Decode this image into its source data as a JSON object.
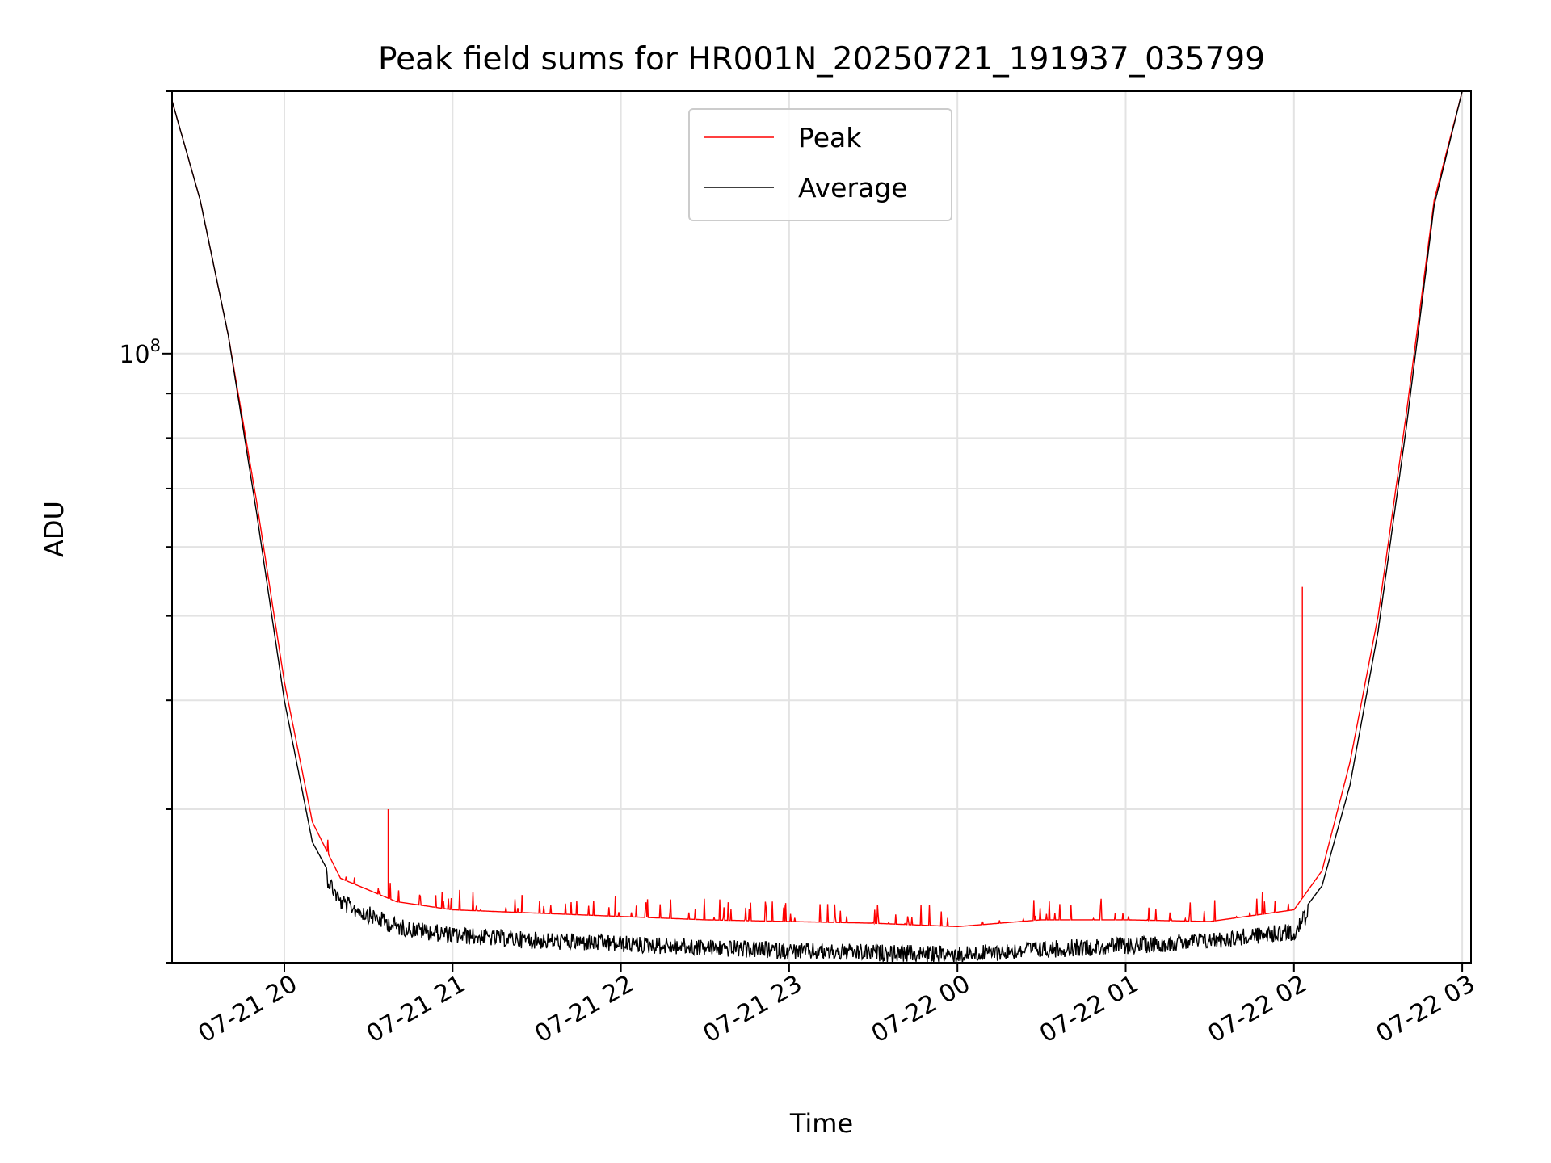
{
  "chart_data": {
    "type": "line",
    "title": "Peak field sums for HR001N_20250721_191937_035799",
    "xlabel": "Time",
    "ylabel": "ADU",
    "yscale": "log",
    "ylim": [
      20000000,
      200000000
    ],
    "xlim": [
      "2025-07-21 19:19:37",
      "2025-07-22 03:00:00"
    ],
    "x_ticks": [
      "07-21 20",
      "07-21 21",
      "07-21 22",
      "07-21 23",
      "07-22 00",
      "07-22 01",
      "07-22 02",
      "07-22 03"
    ],
    "y_tick_major": [
      {
        "value": 100000000,
        "base": "10",
        "exp": "8"
      }
    ],
    "grid": true,
    "legend_position": "upper center",
    "x": [
      "2025-07-21 19:19",
      "2025-07-21 19:30",
      "2025-07-21 19:40",
      "2025-07-21 19:50",
      "2025-07-21 20:00",
      "2025-07-21 20:10",
      "2025-07-21 20:20",
      "2025-07-21 20:40",
      "2025-07-21 21:00",
      "2025-07-21 21:30",
      "2025-07-21 22:00",
      "2025-07-21 22:30",
      "2025-07-21 23:00",
      "2025-07-21 23:30",
      "2025-07-22 00:00",
      "2025-07-22 00:30",
      "2025-07-22 01:00",
      "2025-07-22 01:30",
      "2025-07-22 02:00",
      "2025-07-22 02:10",
      "2025-07-22 02:20",
      "2025-07-22 02:30",
      "2025-07-22 02:40",
      "2025-07-22 02:50",
      "2025-07-22 03:00"
    ],
    "series": [
      {
        "name": "Peak",
        "color": "#ff0000",
        "values": [
          200000000,
          150000000,
          105000000,
          68000000,
          42000000,
          29000000,
          25000000,
          23500000,
          23000000,
          22800000,
          22600000,
          22400000,
          22300000,
          22200000,
          22000000,
          22400000,
          22400000,
          22300000,
          23000000,
          25500000,
          34000000,
          50000000,
          85000000,
          150000000,
          200000000
        ],
        "spikes": [
          {
            "x": "2025-07-21 20:37",
            "value": 30000000
          },
          {
            "x": "2025-07-22 02:03",
            "value": 54000000
          }
        ]
      },
      {
        "name": "Average",
        "color": "#000000",
        "values": [
          200000000,
          150000000,
          105000000,
          66000000,
          40000000,
          27500000,
          24000000,
          22500000,
          22000000,
          21700000,
          21500000,
          21300000,
          21100000,
          21000000,
          20900000,
          21200000,
          21400000,
          21700000,
          22200000,
          24500000,
          32000000,
          48000000,
          82000000,
          148000000,
          200000000
        ]
      }
    ]
  }
}
